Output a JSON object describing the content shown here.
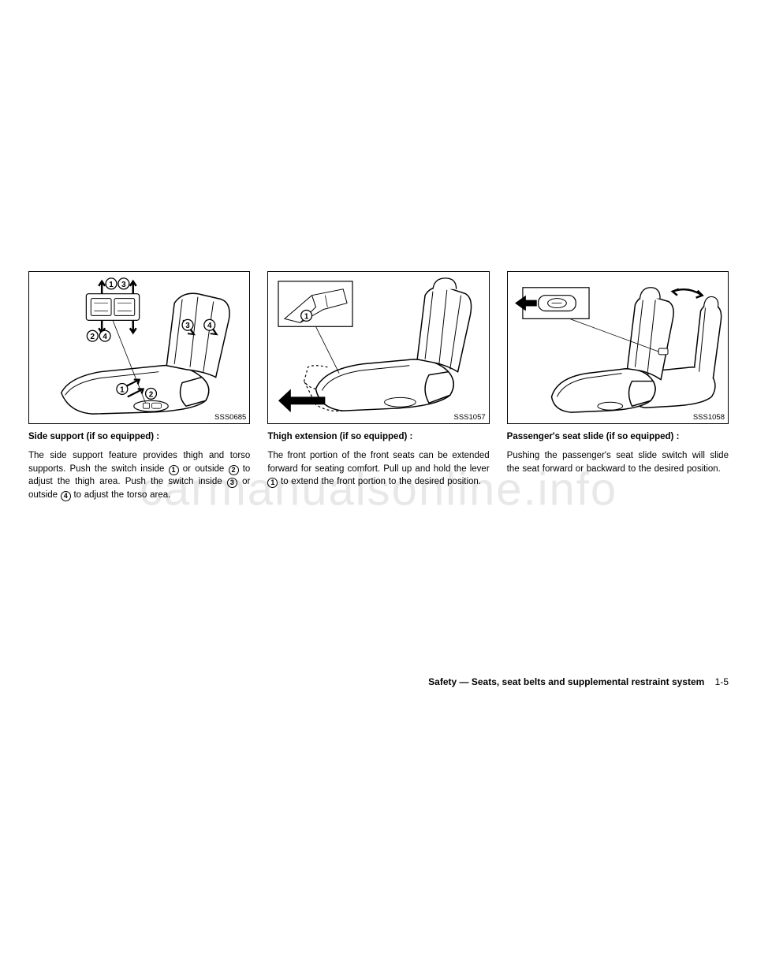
{
  "watermark": "carmanualsonline.info",
  "columns": [
    {
      "figure_id": "SSS0685",
      "heading": "Side support (if so equipped) :",
      "body_parts": [
        "The side support feature provides thigh and torso supports. Push the switch inside ",
        {
          "circled": "1"
        },
        " or outside ",
        {
          "circled": "2"
        },
        " to adjust the thigh area. Push the switch inside ",
        {
          "circled": "3"
        },
        " or outside ",
        {
          "circled": "4"
        },
        " to adjust the torso area."
      ]
    },
    {
      "figure_id": "SSS1057",
      "heading": "Thigh extension (if so equipped) :",
      "body_parts": [
        "The front portion of the front seats can be extended forward for seating comfort. Pull up and hold the lever ",
        {
          "circled": "1"
        },
        " to extend the front portion to the desired position."
      ]
    },
    {
      "figure_id": "SSS1058",
      "heading": "Passenger's seat slide (if so equipped) :",
      "body_parts": [
        "Pushing the passenger's seat slide switch will slide the seat forward or backward to the desired position."
      ]
    }
  ],
  "footer": {
    "section": "Safety — Seats, seat belts and supplemental restraint system",
    "page": "1-5"
  },
  "figure_stroke": "#000000",
  "figure_fill": "#ffffff"
}
